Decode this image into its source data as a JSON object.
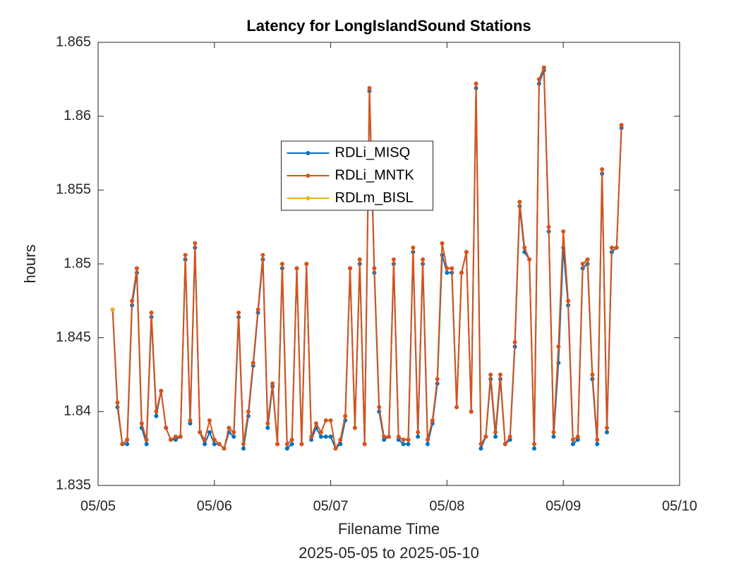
{
  "chart_data": {
    "type": "line",
    "title": "Latency for LongIslandSound Stations",
    "x_label": "Filename Time",
    "x_sublabel": "2025-05-05 to 2025-05-10",
    "y_label": "hours",
    "x": [
      "2025-05-05T03:00",
      "2025-05-05T04:00",
      "2025-05-05T05:00",
      "2025-05-05T06:00",
      "2025-05-05T07:00",
      "2025-05-05T08:00",
      "2025-05-05T09:00",
      "2025-05-05T10:00",
      "2025-05-05T11:00",
      "2025-05-05T12:00",
      "2025-05-05T13:00",
      "2025-05-05T14:00",
      "2025-05-05T15:00",
      "2025-05-05T16:00",
      "2025-05-05T17:00",
      "2025-05-05T18:00",
      "2025-05-05T19:00",
      "2025-05-05T20:00",
      "2025-05-05T21:00",
      "2025-05-05T22:00",
      "2025-05-05T23:00",
      "2025-05-06T00:00",
      "2025-05-06T01:00",
      "2025-05-06T02:00",
      "2025-05-06T03:00",
      "2025-05-06T04:00",
      "2025-05-06T05:00",
      "2025-05-06T06:00",
      "2025-05-06T07:00",
      "2025-05-06T08:00",
      "2025-05-06T09:00",
      "2025-05-06T10:00",
      "2025-05-06T11:00",
      "2025-05-06T12:00",
      "2025-05-06T13:00",
      "2025-05-06T14:00",
      "2025-05-06T15:00",
      "2025-05-06T16:00",
      "2025-05-06T17:00",
      "2025-05-06T18:00",
      "2025-05-06T19:00",
      "2025-05-06T20:00",
      "2025-05-06T21:00",
      "2025-05-06T22:00",
      "2025-05-06T23:00",
      "2025-05-07T00:00",
      "2025-05-07T01:00",
      "2025-05-07T02:00",
      "2025-05-07T03:00",
      "2025-05-07T04:00",
      "2025-05-07T05:00",
      "2025-05-07T06:00",
      "2025-05-07T07:00",
      "2025-05-07T08:00",
      "2025-05-07T09:00",
      "2025-05-07T10:00",
      "2025-05-07T11:00",
      "2025-05-07T12:00",
      "2025-05-07T13:00",
      "2025-05-07T14:00",
      "2025-05-07T15:00",
      "2025-05-07T16:00",
      "2025-05-07T17:00",
      "2025-05-07T18:00",
      "2025-05-07T19:00",
      "2025-05-07T20:00",
      "2025-05-07T21:00",
      "2025-05-07T22:00",
      "2025-05-07T23:00",
      "2025-05-08T00:00",
      "2025-05-08T01:00",
      "2025-05-08T02:00",
      "2025-05-08T03:00",
      "2025-05-08T04:00",
      "2025-05-08T05:00",
      "2025-05-08T06:00",
      "2025-05-08T07:00",
      "2025-05-08T08:00",
      "2025-05-08T09:00",
      "2025-05-08T10:00",
      "2025-05-08T11:00",
      "2025-05-08T12:00",
      "2025-05-08T13:00",
      "2025-05-08T14:00",
      "2025-05-08T15:00",
      "2025-05-08T16:00",
      "2025-05-08T17:00",
      "2025-05-08T18:00",
      "2025-05-08T19:00",
      "2025-05-08T20:00",
      "2025-05-08T21:00",
      "2025-05-08T22:00",
      "2025-05-08T23:00",
      "2025-05-09T00:00",
      "2025-05-09T01:00",
      "2025-05-09T02:00",
      "2025-05-09T03:00",
      "2025-05-09T04:00",
      "2025-05-09T05:00",
      "2025-05-09T06:00",
      "2025-05-09T07:00",
      "2025-05-09T08:00",
      "2025-05-09T09:00",
      "2025-05-09T10:00",
      "2025-05-09T11:00",
      "2025-05-09T12:00"
    ],
    "series": [
      {
        "name": "RDLi_MISQ",
        "color": "#0072BD",
        "values": [
          1.8469,
          1.8403,
          1.8378,
          1.8378,
          1.8472,
          1.8494,
          1.8389,
          1.8378,
          1.8464,
          1.8397,
          1.8414,
          1.8389,
          1.8381,
          1.8381,
          1.8383,
          1.8503,
          1.8392,
          1.8511,
          1.8386,
          1.8378,
          1.8386,
          1.8378,
          1.8378,
          1.8375,
          1.8386,
          1.8383,
          1.8464,
          1.8375,
          1.8397,
          1.8431,
          1.8467,
          1.8503,
          1.8389,
          1.8417,
          1.8378,
          1.8497,
          1.8375,
          1.8378,
          1.8497,
          1.8378,
          1.85,
          1.8381,
          1.8389,
          1.8383,
          1.8383,
          1.8383,
          1.8375,
          1.8378,
          1.8394,
          1.8497,
          1.8389,
          1.85,
          1.8378,
          1.8617,
          1.8494,
          1.84,
          1.8381,
          1.8383,
          1.85,
          1.8381,
          1.8378,
          1.8378,
          1.8508,
          1.8383,
          1.85,
          1.8378,
          1.8392,
          1.8419,
          1.8506,
          1.8494,
          1.8494,
          1.8403,
          1.8494,
          1.8508,
          1.84,
          1.8619,
          1.8375,
          1.8383,
          1.8422,
          1.8383,
          1.8422,
          1.8378,
          1.8381,
          1.8444,
          1.8539,
          1.8508,
          1.8503,
          1.8375,
          1.8622,
          1.8631,
          1.8522,
          1.8383,
          1.8433,
          1.8511,
          1.8472,
          1.8378,
          1.8381,
          1.8497,
          1.85,
          1.8422,
          1.8378,
          1.8561,
          1.8386,
          1.8508,
          1.8511,
          1.8592
        ]
      },
      {
        "name": "RDLi_MNTK",
        "color": "#D95319",
        "values": [
          1.8469,
          1.8406,
          1.8378,
          1.8381,
          1.8475,
          1.8497,
          1.8392,
          1.8381,
          1.8467,
          1.84,
          1.8414,
          1.8389,
          1.8381,
          1.8383,
          1.8383,
          1.8506,
          1.8394,
          1.8514,
          1.8386,
          1.8381,
          1.8394,
          1.8381,
          1.8378,
          1.8375,
          1.8389,
          1.8386,
          1.8467,
          1.8378,
          1.84,
          1.8433,
          1.8469,
          1.8506,
          1.8392,
          1.8419,
          1.8378,
          1.85,
          1.8378,
          1.8381,
          1.8497,
          1.8378,
          1.85,
          1.8383,
          1.8392,
          1.8386,
          1.8394,
          1.8394,
          1.8375,
          1.8381,
          1.8397,
          1.8497,
          1.8389,
          1.8503,
          1.8378,
          1.8619,
          1.8497,
          1.8403,
          1.8383,
          1.8383,
          1.8503,
          1.8383,
          1.8381,
          1.8381,
          1.8511,
          1.8386,
          1.8503,
          1.8381,
          1.8394,
          1.8422,
          1.8514,
          1.8497,
          1.8497,
          1.8403,
          1.8494,
          1.8508,
          1.84,
          1.8622,
          1.8378,
          1.8383,
          1.8425,
          1.8386,
          1.8425,
          1.8378,
          1.8383,
          1.8447,
          1.8542,
          1.8511,
          1.8503,
          1.8378,
          1.8625,
          1.8633,
          1.8525,
          1.8386,
          1.8444,
          1.8522,
          1.8475,
          1.8381,
          1.8383,
          1.85,
          1.8503,
          1.8425,
          1.8381,
          1.8564,
          1.8389,
          1.8511,
          1.8511,
          1.8594
        ]
      },
      {
        "name": "RDLm_BISL",
        "color": "#EDB120",
        "values": [
          1.8469,
          null,
          null,
          null,
          null,
          null,
          null,
          null,
          null,
          null,
          null,
          null,
          null,
          null,
          null,
          null,
          null,
          null,
          null,
          null,
          null,
          null,
          null,
          null,
          null,
          null,
          null,
          null,
          null,
          null,
          null,
          null,
          null,
          null,
          null,
          null,
          null,
          null,
          null,
          null,
          null,
          null,
          null,
          null,
          null,
          null,
          null,
          null,
          null,
          null,
          null,
          null,
          null,
          null,
          null,
          null,
          null,
          null,
          null,
          null,
          null,
          null,
          null,
          null,
          null,
          null,
          null,
          null,
          null,
          null,
          null,
          null,
          null,
          null,
          null,
          null,
          null,
          null,
          null,
          null,
          null,
          null,
          null,
          null,
          null,
          null,
          null,
          null,
          null,
          null,
          null,
          null,
          null,
          null,
          null,
          null,
          null,
          null,
          null,
          null,
          null,
          null,
          null,
          null,
          null,
          null
        ]
      }
    ],
    "xlim": [
      "2025-05-05",
      "2025-05-10"
    ],
    "xticks": [
      {
        "value": "2025-05-05",
        "label": "05/05"
      },
      {
        "value": "2025-05-06",
        "label": "05/06"
      },
      {
        "value": "2025-05-07",
        "label": "05/07"
      },
      {
        "value": "2025-05-08",
        "label": "05/08"
      },
      {
        "value": "2025-05-09",
        "label": "05/09"
      },
      {
        "value": "2025-05-10",
        "label": "05/10"
      }
    ],
    "ylim": [
      1.835,
      1.865
    ],
    "yticks": [
      1.835,
      1.84,
      1.845,
      1.85,
      1.855,
      1.86,
      1.865
    ],
    "grid": false,
    "legend": "top-center"
  }
}
